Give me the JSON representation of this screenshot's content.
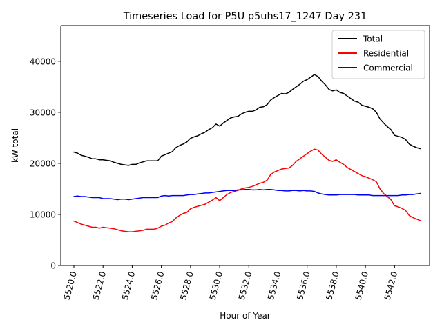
{
  "chart_data": {
    "type": "line",
    "title": "Timeseries Load for P5U p5uhs17_1247  Day 231",
    "xlabel": "Hour of Year",
    "ylabel": "kW total",
    "xlim": [
      5519.1,
      5544.4
    ],
    "ylim": [
      0,
      47000
    ],
    "xticks": [
      5520,
      5522,
      5524,
      5526,
      5528,
      5530,
      5532,
      5534,
      5536,
      5538,
      5540,
      5542
    ],
    "xtick_labels": [
      "5520.0",
      "5522.0",
      "5524.0",
      "5526.0",
      "5528.0",
      "5530.0",
      "5532.0",
      "5534.0",
      "5536.0",
      "5538.0",
      "5540.0",
      "5542.0"
    ],
    "yticks": [
      0,
      10000,
      20000,
      30000,
      40000
    ],
    "ytick_labels": [
      "0",
      "10000",
      "20000",
      "30000",
      "40000"
    ],
    "legend_position": "top-right",
    "grid": false,
    "x": [
      5520.0,
      5520.25,
      5520.5,
      5520.75,
      5521.0,
      5521.25,
      5521.5,
      5521.75,
      5522.0,
      5522.25,
      5522.5,
      5522.75,
      5523.0,
      5523.25,
      5523.5,
      5523.75,
      5524.0,
      5524.25,
      5524.5,
      5524.75,
      5525.0,
      5525.25,
      5525.5,
      5525.75,
      5526.0,
      5526.25,
      5526.5,
      5526.75,
      5527.0,
      5527.25,
      5527.5,
      5527.75,
      5528.0,
      5528.25,
      5528.5,
      5528.75,
      5529.0,
      5529.25,
      5529.5,
      5529.75,
      5530.0,
      5530.25,
      5530.5,
      5530.75,
      5531.0,
      5531.25,
      5531.5,
      5531.75,
      5532.0,
      5532.25,
      5532.5,
      5532.75,
      5533.0,
      5533.25,
      5533.5,
      5533.75,
      5534.0,
      5534.25,
      5534.5,
      5534.75,
      5535.0,
      5535.25,
      5535.5,
      5535.75,
      5536.0,
      5536.25,
      5536.5,
      5536.75,
      5537.0,
      5537.25,
      5537.5,
      5537.75,
      5538.0,
      5538.25,
      5538.5,
      5538.75,
      5539.0,
      5539.25,
      5539.5,
      5539.75,
      5540.0,
      5540.25,
      5540.5,
      5540.75,
      5541.0,
      5541.25,
      5541.5,
      5541.75,
      5542.0,
      5542.25,
      5542.5,
      5542.75,
      5543.0,
      5543.25,
      5543.5,
      5543.75
    ],
    "series": [
      {
        "name": "Total",
        "color": "#000000",
        "values": [
          22200,
          22000,
          21600,
          21400,
          21200,
          20900,
          20900,
          20700,
          20700,
          20600,
          20500,
          20200,
          20000,
          19800,
          19700,
          19600,
          19800,
          19800,
          20100,
          20300,
          20500,
          20500,
          20500,
          20500,
          21400,
          21700,
          22000,
          22300,
          23100,
          23500,
          23800,
          24200,
          24900,
          25200,
          25400,
          25800,
          26100,
          26600,
          27000,
          27700,
          27300,
          27900,
          28400,
          28900,
          29100,
          29200,
          29700,
          30000,
          30200,
          30200,
          30500,
          31000,
          31100,
          31500,
          32400,
          32900,
          33300,
          33700,
          33600,
          33900,
          34500,
          35000,
          35500,
          36100,
          36400,
          36900,
          37400,
          37000,
          36100,
          35400,
          34500,
          34200,
          34400,
          33900,
          33700,
          33200,
          32700,
          32200,
          32000,
          31400,
          31200,
          31000,
          30700,
          30000,
          28700,
          27900,
          27200,
          26600,
          25500,
          25300,
          25100,
          24700,
          23800,
          23400,
          23100,
          22900
        ]
      },
      {
        "name": "Residential",
        "color": "#ff0000",
        "values": [
          8700,
          8400,
          8100,
          7900,
          7700,
          7500,
          7500,
          7300,
          7500,
          7400,
          7300,
          7200,
          7000,
          6800,
          6700,
          6600,
          6600,
          6700,
          6800,
          6900,
          7100,
          7100,
          7100,
          7300,
          7700,
          7900,
          8300,
          8600,
          9300,
          9800,
          10200,
          10400,
          11100,
          11400,
          11600,
          11800,
          12000,
          12400,
          12800,
          13300,
          12700,
          13300,
          13900,
          14300,
          14500,
          14700,
          15000,
          15200,
          15300,
          15500,
          15800,
          16100,
          16300,
          16700,
          17800,
          18300,
          18600,
          18900,
          19000,
          19100,
          19600,
          20400,
          20900,
          21400,
          21900,
          22400,
          22800,
          22600,
          21800,
          21200,
          20600,
          20400,
          20700,
          20200,
          19800,
          19200,
          18800,
          18400,
          18000,
          17600,
          17400,
          17100,
          16800,
          16400,
          15000,
          14100,
          13500,
          12900,
          11700,
          11500,
          11200,
          10800,
          9800,
          9400,
          9100,
          8800
        ]
      },
      {
        "name": "Commercial",
        "color": "#0000ff",
        "values": [
          13500,
          13600,
          13500,
          13500,
          13400,
          13300,
          13300,
          13300,
          13100,
          13100,
          13100,
          13000,
          12900,
          13000,
          13000,
          12900,
          13000,
          13100,
          13200,
          13300,
          13300,
          13300,
          13300,
          13300,
          13600,
          13700,
          13600,
          13700,
          13700,
          13700,
          13700,
          13800,
          13900,
          13900,
          14000,
          14100,
          14200,
          14200,
          14300,
          14400,
          14500,
          14600,
          14700,
          14700,
          14700,
          14800,
          14800,
          14900,
          14900,
          14800,
          14800,
          14900,
          14800,
          14900,
          14900,
          14800,
          14700,
          14700,
          14600,
          14600,
          14700,
          14700,
          14600,
          14700,
          14600,
          14600,
          14500,
          14200,
          14000,
          13900,
          13800,
          13800,
          13800,
          13900,
          13900,
          13900,
          13900,
          13900,
          13800,
          13800,
          13800,
          13800,
          13700,
          13700,
          13700,
          13700,
          13700,
          13700,
          13700,
          13700,
          13800,
          13800,
          13900,
          13900,
          14000,
          14100
        ]
      }
    ]
  }
}
